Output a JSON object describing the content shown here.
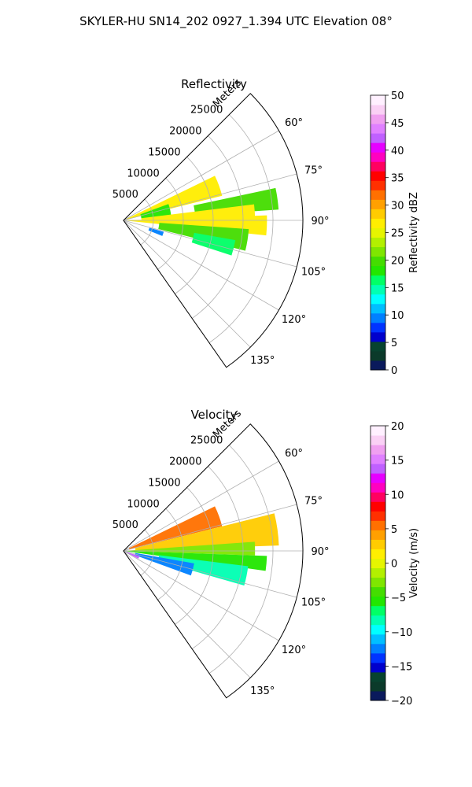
{
  "chart_data": {
    "title": "SKYLER-HU  SN14_202  0927_1.394 UTC Elevation 08°",
    "panels": [
      {
        "type": "heatmap",
        "projection": "polar-sector",
        "title": "Reflectivity",
        "radial_label": "Meters",
        "radial_ticks": [
          "5000",
          "10000",
          "15000",
          "20000",
          "25000"
        ],
        "radial_tick_values": [
          5000,
          10000,
          15000,
          20000,
          25000
        ],
        "r_max": 30000,
        "azimuth_range": [
          45,
          145
        ],
        "azimuth_ticks": [
          "60°",
          "75°",
          "90°",
          "105°",
          "120°",
          "135°"
        ],
        "azimuth_tick_values": [
          60,
          75,
          90,
          105,
          120,
          135
        ],
        "grid": true,
        "colorbar": {
          "label": "Reflectivity dBZ",
          "min": 0,
          "max": 50,
          "ticks": [
            "0",
            "5",
            "10",
            "15",
            "20",
            "25",
            "30",
            "35",
            "40",
            "45",
            "50"
          ],
          "tick_values": [
            0,
            5,
            10,
            15,
            20,
            25,
            30,
            35,
            40,
            45,
            50
          ],
          "colors": [
            "#0a1a5c",
            "#0b3a2a",
            "#07432f",
            "#0000cc",
            "#0033ff",
            "#0080ff",
            "#00bfff",
            "#00ffff",
            "#00ffb3",
            "#00ff66",
            "#22e600",
            "#44dd00",
            "#7fe600",
            "#b3f000",
            "#e6f500",
            "#ffee00",
            "#ffcc00",
            "#ffa000",
            "#ff7000",
            "#ff3000",
            "#ff0000",
            "#ff0060",
            "#ff00c0",
            "#e600ff",
            "#c060ff",
            "#e080ff",
            "#f0a0f0",
            "#fad0f5",
            "#fff0ff"
          ]
        },
        "echoes": [
          {
            "az": [
              64,
              76
            ],
            "r": [
              500,
              17000
            ],
            "value": 27
          },
          {
            "az": [
              70,
              84
            ],
            "r": [
              3000,
              8000
            ],
            "value": 18
          },
          {
            "az": [
              78,
              86
            ],
            "r": [
              12000,
              26000
            ],
            "value": 19
          },
          {
            "az": [
              83,
              90
            ],
            "r": [
              3000,
              22000
            ],
            "value": 26
          },
          {
            "az": [
              88,
              96
            ],
            "r": [
              500,
              24000
            ],
            "value": 27
          },
          {
            "az": [
              94,
              104
            ],
            "r": [
              6000,
              21000
            ],
            "value": 20
          },
          {
            "az": [
              100,
              108
            ],
            "r": [
              12000,
              19000
            ],
            "value": 17
          },
          {
            "az": [
              106,
              112
            ],
            "r": [
              4500,
              7000
            ],
            "value": 9
          }
        ]
      },
      {
        "type": "heatmap",
        "projection": "polar-sector",
        "title": "Velocity",
        "radial_label": "Meters",
        "radial_ticks": [
          "5000",
          "10000",
          "15000",
          "20000",
          "25000"
        ],
        "radial_tick_values": [
          5000,
          10000,
          15000,
          20000,
          25000
        ],
        "r_max": 30000,
        "azimuth_range": [
          45,
          145
        ],
        "azimuth_ticks": [
          "60°",
          "75°",
          "90°",
          "105°",
          "120°",
          "135°"
        ],
        "azimuth_tick_values": [
          60,
          75,
          90,
          105,
          120,
          135
        ],
        "grid": true,
        "colorbar": {
          "label": "Velocity (m/s)",
          "min": -20,
          "max": 20,
          "ticks": [
            "−20",
            "−15",
            "−10",
            "−5",
            "0",
            "5",
            "10",
            "15",
            "20"
          ],
          "tick_values": [
            -20,
            -15,
            -10,
            -5,
            0,
            5,
            10,
            15,
            20
          ],
          "colors": [
            "#0a1a5c",
            "#0b3a2a",
            "#07432f",
            "#0000cc",
            "#0033ff",
            "#0080ff",
            "#00bfff",
            "#00ffff",
            "#00ffb3",
            "#00ff66",
            "#22e600",
            "#44dd00",
            "#7fe600",
            "#b3f000",
            "#e6f500",
            "#ffee00",
            "#ffcc00",
            "#ffa000",
            "#ff7000",
            "#ff3000",
            "#ff0000",
            "#ff0060",
            "#ff00c0",
            "#e600ff",
            "#c060ff",
            "#e080ff",
            "#f0a0f0",
            "#fad0f5",
            "#fff0ff"
          ]
        },
        "echoes": [
          {
            "az": [
              64,
              76
            ],
            "r": [
              1000,
              17000
            ],
            "value": 6
          },
          {
            "az": [
              76,
              88
            ],
            "r": [
              2000,
              26000
            ],
            "value": 3
          },
          {
            "az": [
              86,
              92
            ],
            "r": [
              500,
              22000
            ],
            "value": -3
          },
          {
            "az": [
              92,
              98
            ],
            "r": [
              500,
              24000
            ],
            "value": -6
          },
          {
            "az": [
              97,
              106
            ],
            "r": [
              6000,
              21000
            ],
            "value": -8
          },
          {
            "az": [
              100,
              110
            ],
            "r": [
              2000,
              12000
            ],
            "value": -12
          },
          {
            "az": [
              108,
              118
            ],
            "r": [
              400,
              2800
            ],
            "value": 14
          }
        ]
      }
    ]
  }
}
